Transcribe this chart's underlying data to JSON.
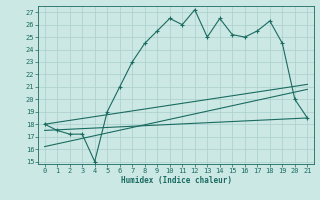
{
  "xlabel": "Humidex (Indice chaleur)",
  "ylabel": "",
  "bg_color": "#cce8e5",
  "grid_color": "#aacfcc",
  "line_color": "#1a6b60",
  "xlim": [
    -0.5,
    21.5
  ],
  "ylim": [
    14.8,
    27.5
  ],
  "yticks": [
    15,
    16,
    17,
    18,
    19,
    20,
    21,
    22,
    23,
    24,
    25,
    26,
    27
  ],
  "xticks": [
    0,
    1,
    2,
    3,
    4,
    5,
    6,
    7,
    8,
    9,
    10,
    11,
    12,
    13,
    14,
    15,
    16,
    17,
    18,
    19,
    20,
    21
  ],
  "main_x": [
    0,
    1,
    2,
    3,
    4,
    5,
    6,
    7,
    8,
    9,
    10,
    11,
    12,
    13,
    14,
    15,
    16,
    17,
    18,
    19,
    20,
    21
  ],
  "main_y": [
    18.0,
    17.5,
    17.2,
    17.2,
    15.0,
    19.0,
    21.0,
    23.0,
    24.5,
    25.5,
    26.5,
    26.0,
    27.2,
    25.0,
    26.5,
    25.2,
    25.0,
    25.5,
    26.3,
    24.5,
    20.0,
    18.5
  ],
  "trend1_x": [
    0,
    21
  ],
  "trend1_y": [
    18.0,
    21.2
  ],
  "trend2_x": [
    0,
    21
  ],
  "trend2_y": [
    17.5,
    18.5
  ],
  "trend3_x": [
    0,
    21
  ],
  "trend3_y": [
    16.2,
    20.8
  ]
}
